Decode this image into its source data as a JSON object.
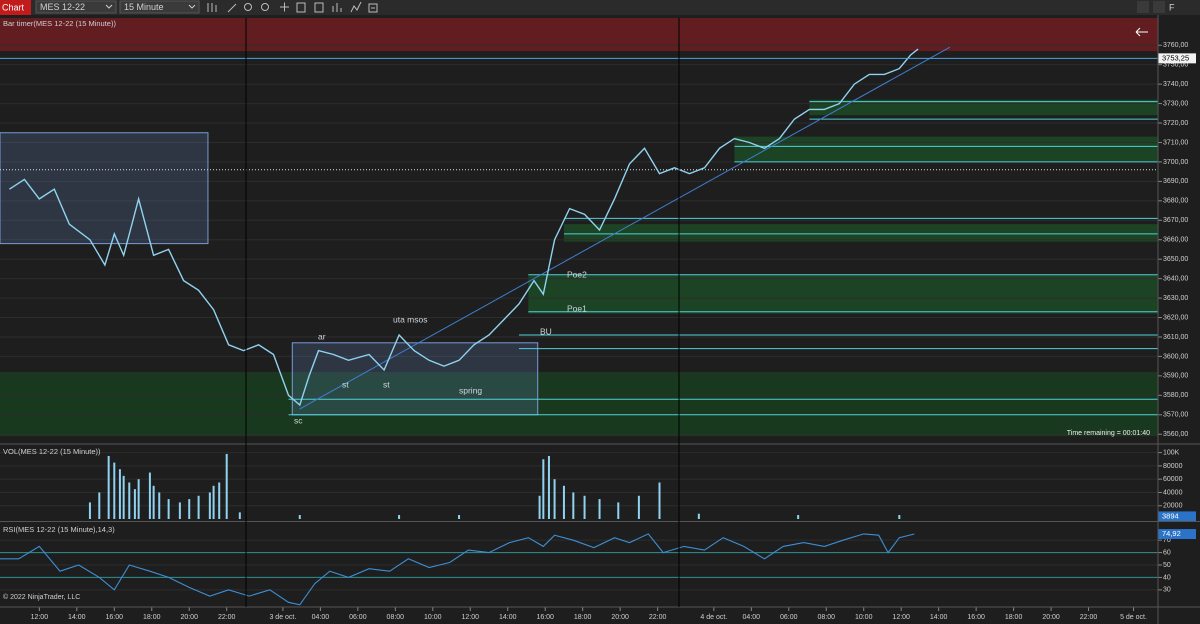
{
  "toolbar": {
    "title": "Chart",
    "instrument": "MES 12-22",
    "interval": "15 Minute",
    "right_button": "F"
  },
  "chart_data": [
    {
      "type": "line",
      "title": "Bar timer(MES 12-22 (15 Minute))",
      "color": "#8fd3f0",
      "xlim": [
        -2.1,
        59.6
      ],
      "x": [
        -1.6,
        -0.8,
        0,
        0.8,
        1.6,
        2.7,
        3.5,
        4,
        4.5,
        5.3,
        6.1,
        6.9,
        7.7,
        8.5,
        9.3,
        10.1,
        10.9,
        11.7,
        12.5,
        13.3,
        13.9,
        14.4,
        14.9,
        15.7,
        16.5,
        17.6,
        18.4,
        19.2,
        20,
        20.8,
        21.6,
        22.4,
        23.2,
        24,
        24.8,
        25.6,
        26.4,
        26.9,
        27.5,
        28.3,
        29.1,
        29.9,
        30.7,
        31.5,
        32.3,
        33.1,
        33.9,
        34.7,
        35.5,
        36.3,
        37.1,
        37.9,
        38.7,
        39.5,
        40.3,
        41.1,
        41.9,
        42.7,
        43.5,
        44.3,
        45.1,
        45.9,
        46.5,
        46.9
      ],
      "values": [
        3686,
        3691,
        3681,
        3686,
        3668,
        3660,
        3647,
        3663,
        3652,
        3681,
        3652,
        3655,
        3639,
        3634,
        3624,
        3606,
        3603,
        3606,
        3601,
        3580,
        3575,
        3590,
        3603,
        3601,
        3598,
        3601,
        3593,
        3611,
        3603,
        3598,
        3595,
        3598,
        3606,
        3611,
        3619,
        3627,
        3639,
        3632,
        3660,
        3676,
        3673,
        3665,
        3681,
        3699,
        3707,
        3694,
        3697,
        3694,
        3697,
        3707,
        3712,
        3710,
        3707,
        3712,
        3722,
        3727,
        3727,
        3730,
        3740,
        3745,
        3745,
        3748,
        3755,
        3758
      ],
      "ylim": [
        3556,
        3774
      ],
      "yticks": [
        {
          "value": 3760,
          "label": "3760,00"
        },
        {
          "value": 3750,
          "label": "3750,00"
        },
        {
          "value": 3740,
          "label": "3740,00"
        },
        {
          "value": 3730,
          "label": "3730,00"
        },
        {
          "value": 3720,
          "label": "3720,00"
        },
        {
          "value": 3710,
          "label": "3710,00"
        },
        {
          "value": 3700,
          "label": "3700,00"
        },
        {
          "value": 3690,
          "label": "3690,00"
        },
        {
          "value": 3680,
          "label": "3680,00"
        },
        {
          "value": 3670,
          "label": "3670,00"
        },
        {
          "value": 3660,
          "label": "3660,00"
        },
        {
          "value": 3650,
          "label": "3650,00"
        },
        {
          "value": 3640,
          "label": "3640,00"
        },
        {
          "value": 3630,
          "label": "3630,00"
        },
        {
          "value": 3620,
          "label": "3620,00"
        },
        {
          "value": 3610,
          "label": "3610,00"
        },
        {
          "value": 3600,
          "label": "3600,00"
        },
        {
          "value": 3590,
          "label": "3590,00"
        },
        {
          "value": 3580,
          "label": "3580,00"
        },
        {
          "value": 3570,
          "label": "3570,00"
        },
        {
          "value": 3560,
          "label": "3560,00"
        }
      ],
      "last_value": {
        "value": 3753.25,
        "label": "3753,25"
      },
      "zones": [
        {
          "from": 3774,
          "to": 3757,
          "x": -2.1,
          "color": "#6e1d22"
        },
        {
          "from": 3592,
          "to": 3559,
          "x": -2.1,
          "color": "#173e1f"
        },
        {
          "from": 3642,
          "to": 3622,
          "x": 26.1,
          "color": "#1c4a24"
        },
        {
          "from": 3668,
          "to": 3659,
          "x": 28,
          "color": "#1c4a24"
        },
        {
          "from": 3713,
          "to": 3700,
          "x": 37.1,
          "color": "#1c4a24"
        },
        {
          "from": 3732,
          "to": 3724,
          "x": 41.1,
          "color": "#1c4a24"
        }
      ],
      "levels": [
        {
          "value": 3731,
          "x": 41.1
        },
        {
          "value": 3722,
          "x": 41.1
        },
        {
          "value": 3708,
          "x": 37.1
        },
        {
          "value": 3700,
          "x": 37.1
        },
        {
          "value": 3671,
          "x": 28
        },
        {
          "value": 3663,
          "x": 28
        },
        {
          "value": 3642,
          "x": 26.1
        },
        {
          "value": 3623,
          "x": 26.1
        },
        {
          "value": 3611,
          "x": 25.6
        },
        {
          "value": 3604,
          "x": 25.6
        },
        {
          "value": 3578,
          "x": 13.3
        },
        {
          "value": 3570,
          "x": 13.3
        }
      ],
      "level_color": "#4fd1d9",
      "dotted_level": 3696,
      "boxes": [
        {
          "x0": -2.1,
          "x1": 9,
          "top": 3715,
          "bottom": 3658
        },
        {
          "x0": 13.5,
          "x1": 26.6,
          "top": 3607,
          "bottom": 3570
        }
      ],
      "trendline": {
        "x": [
          13.9,
          48.6
        ],
        "values": [
          3573,
          3759
        ]
      },
      "annotations": [
        "Poe2",
        "Poe1",
        "BU",
        "uta msos",
        "ar",
        "st",
        "st",
        "spring",
        "sc"
      ],
      "timer": "Time remaining = 00:01:40"
    },
    {
      "type": "bar",
      "title": "VOL(MES 12-22 (15 Minute))",
      "color": "#8fd3f0",
      "xlim": [
        -2.1,
        59.6
      ],
      "x": [
        2.7,
        3.2,
        3.7,
        4,
        4.3,
        4.5,
        4.8,
        5.1,
        5.3,
        5.9,
        6.1,
        6.4,
        6.9,
        7.5,
        8,
        8.5,
        9.1,
        9.3,
        9.6,
        10,
        10.7,
        13.9,
        19.2,
        22.4,
        26.7,
        26.9,
        27.2,
        27.5,
        28,
        28.5,
        29.1,
        29.9,
        30.9,
        32,
        33.1,
        35.2,
        40.5,
        45.9
      ],
      "values": [
        25000,
        40000,
        95000,
        85000,
        75000,
        65000,
        55000,
        45000,
        60000,
        70000,
        50000,
        40000,
        30000,
        25000,
        30000,
        35000,
        40000,
        50000,
        55000,
        98000,
        10000,
        6000,
        6000,
        6000,
        35000,
        90000,
        95000,
        60000,
        50000,
        40000,
        35000,
        30000,
        25000,
        35000,
        55000,
        8000,
        6000,
        6000
      ],
      "ylim": [
        0,
        110000
      ],
      "yticks": [
        {
          "value": 100000,
          "label": "100K"
        },
        80000,
        60000,
        40000,
        20000
      ],
      "last_value": 3894
    },
    {
      "type": "line",
      "title": "RSI(MES 12-22 (15 Minute),14,3)",
      "color": "#3c8fd6",
      "xlim": [
        -2.1,
        59.6
      ],
      "x": [
        -2.1,
        -1.1,
        0,
        1.1,
        2.1,
        3.2,
        4,
        4.8,
        5.9,
        6.9,
        8,
        9.1,
        10.1,
        11.2,
        12.3,
        13.3,
        13.9,
        14.7,
        15.5,
        16.5,
        17.6,
        18.7,
        19.7,
        20.8,
        21.9,
        22.9,
        24,
        25.1,
        26.1,
        26.9,
        27.5,
        28.5,
        29.6,
        30.7,
        31.5,
        32.5,
        33.3,
        34.4,
        35.5,
        36.5,
        37.6,
        38.7,
        39.7,
        40.8,
        41.9,
        42.9,
        44,
        44.8,
        45.3,
        45.9,
        46.7
      ],
      "values": [
        55,
        55,
        65,
        45,
        50,
        40,
        30,
        50,
        45,
        40,
        32,
        25,
        30,
        25,
        30,
        20,
        18,
        35,
        45,
        40,
        47,
        45,
        55,
        48,
        52,
        62,
        60,
        68,
        72,
        65,
        74,
        70,
        64,
        72,
        68,
        75,
        60,
        65,
        62,
        72,
        65,
        55,
        65,
        68,
        65,
        70,
        75,
        74,
        60,
        72,
        74.92
      ],
      "ylim": [
        17,
        83
      ],
      "yticks": [
        70,
        60,
        50,
        40,
        30
      ],
      "levels": [
        60,
        40
      ],
      "last_value": {
        "value": 74.92,
        "label": "74,92"
      },
      "xticks": [
        {
          "value": 0,
          "label": "12:00"
        },
        {
          "value": 2,
          "label": "14:00"
        },
        {
          "value": 4,
          "label": "16:00"
        },
        {
          "value": 6,
          "label": "18:00"
        },
        {
          "value": 8,
          "label": "20:00"
        },
        {
          "value": 10,
          "label": "22:00"
        },
        {
          "value": 13,
          "label": "3 de oct."
        },
        {
          "value": 15,
          "label": "04:00"
        },
        {
          "value": 17,
          "label": "06:00"
        },
        {
          "value": 19,
          "label": "08:00"
        },
        {
          "value": 21,
          "label": "10:00"
        },
        {
          "value": 23,
          "label": "12:00"
        },
        {
          "value": 25,
          "label": "14:00"
        },
        {
          "value": 27,
          "label": "16:00"
        },
        {
          "value": 29,
          "label": "18:00"
        },
        {
          "value": 31,
          "label": "20:00"
        },
        {
          "value": 33,
          "label": "22:00"
        },
        {
          "value": 36,
          "label": "4 de oct."
        },
        {
          "value": 38,
          "label": "04:00"
        },
        {
          "value": 40,
          "label": "06:00"
        },
        {
          "value": 42,
          "label": "08:00"
        },
        {
          "value": 44,
          "label": "10:00"
        },
        {
          "value": 46,
          "label": "12:00"
        },
        {
          "value": 48,
          "label": "14:00"
        },
        {
          "value": 50,
          "label": "16:00"
        },
        {
          "value": 52,
          "label": "18:00"
        },
        {
          "value": 54,
          "label": "20:00"
        },
        {
          "value": 56,
          "label": "22:00"
        },
        {
          "value": 58.4,
          "label": "5 de oct."
        }
      ],
      "copyright": "© 2022 NinjaTrader, LLC"
    }
  ]
}
